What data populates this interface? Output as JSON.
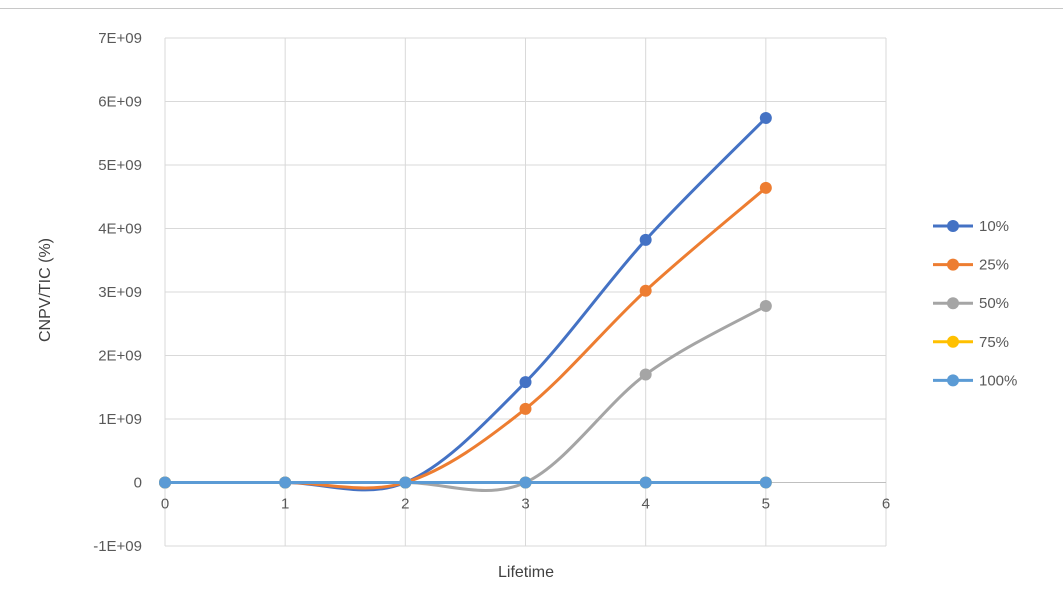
{
  "chart_data": {
    "type": "line",
    "title": "",
    "xlabel": "Lifetime",
    "ylabel": "CNPV/TIC (%)",
    "xlim": [
      0,
      6
    ],
    "ylim": [
      -1000000000,
      7000000000
    ],
    "x_ticks": [
      "0",
      "1",
      "2",
      "3",
      "4",
      "5",
      "6"
    ],
    "y_ticks": [
      "-1E+09",
      "0",
      "1E+09",
      "2E+09",
      "3E+09",
      "4E+09",
      "5E+09",
      "6E+09",
      "7E+09"
    ],
    "grid": true,
    "smooth": true,
    "legend_position": "right",
    "x": [
      0,
      1,
      2,
      3,
      4,
      5
    ],
    "series": [
      {
        "name": "10%",
        "color": "#4472C4",
        "values": [
          0,
          0,
          0,
          1580000000,
          3820000000,
          5740000000
        ]
      },
      {
        "name": "25%",
        "color": "#ED7D31",
        "values": [
          0,
          0,
          0,
          1160000000,
          3020000000,
          4640000000
        ]
      },
      {
        "name": "50%",
        "color": "#A5A5A5",
        "values": [
          0,
          0,
          0,
          0,
          1700000000,
          2780000000
        ]
      },
      {
        "name": "75%",
        "color": "#FFC000",
        "values": [
          0,
          0,
          0,
          0,
          0,
          0
        ]
      },
      {
        "name": "100%",
        "color": "#5B9BD5",
        "values": [
          0,
          0,
          0,
          0,
          0,
          0
        ]
      }
    ]
  }
}
